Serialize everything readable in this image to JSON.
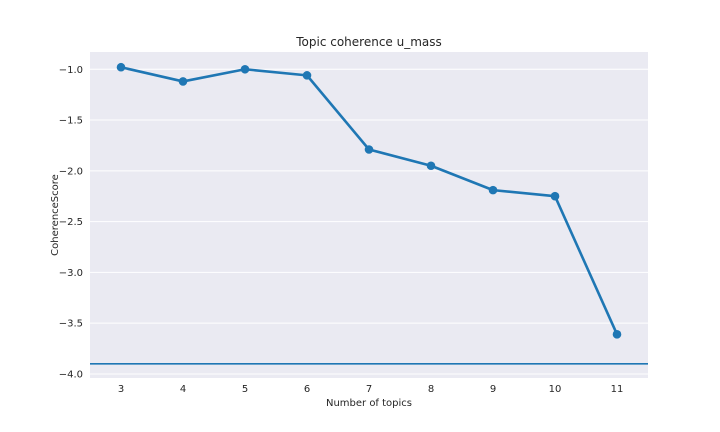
{
  "chart_data": {
    "type": "line",
    "title": "Topic coherence u_mass",
    "xlabel": "Number of topics",
    "ylabel": "CoherenceScore",
    "categories": [
      "3",
      "4",
      "5",
      "6",
      "7",
      "8",
      "9",
      "10",
      "11"
    ],
    "series": [
      {
        "values": [
          -0.98,
          -1.12,
          -1.0,
          -1.06,
          -1.79,
          -1.95,
          -2.19,
          -2.25,
          -3.61
        ]
      }
    ],
    "hline": -3.9,
    "ylim": [
      -4.04,
      -0.83
    ],
    "yticks": [
      -1.0,
      -1.5,
      -2.0,
      -2.5,
      -3.0,
      -3.5,
      -4.0
    ],
    "ytick_labels": [
      "−1.0",
      "−1.5",
      "−2.0",
      "−2.5",
      "−3.0",
      "−3.5",
      "−4.0"
    ],
    "grid": true,
    "style": "seaborn-darkgrid",
    "colors": {
      "line": "#1f77b4",
      "background": "#eaeaf2",
      "grid": "#ffffff"
    }
  }
}
